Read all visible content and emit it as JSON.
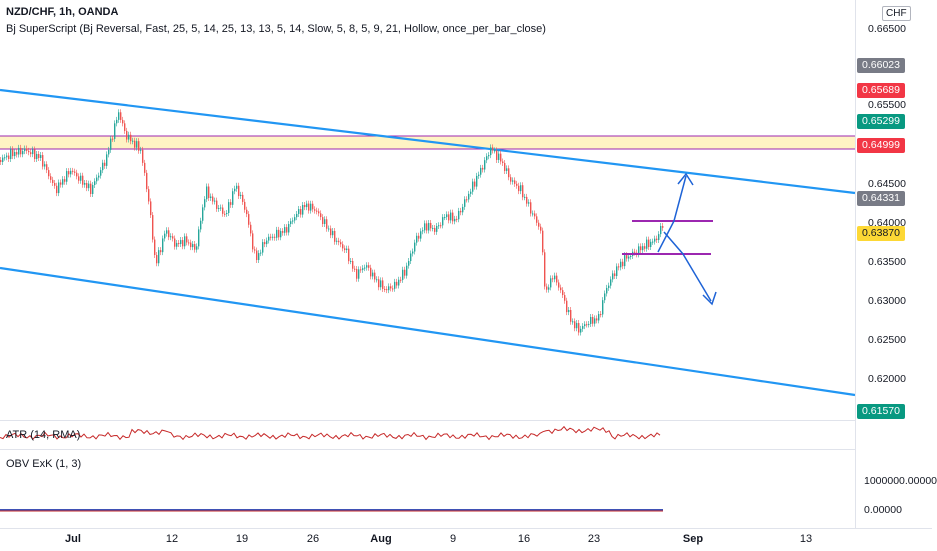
{
  "header": {
    "symbol_line": "NZD/CHF, 1h, OANDA",
    "indicator_line": "Bj SuperScript (Bj Reversal, Fast, 25, 5, 14, 25, 13, 13, 5, 14, Slow, 5, 8, 5, 9, 21, Hollow, once_per_bar_close)"
  },
  "price_axis": {
    "currency": "CHF",
    "ticks": [
      "0.66500",
      "0.65500",
      "0.64500",
      "0.64000",
      "0.63500",
      "0.63000",
      "0.62500",
      "0.62000"
    ],
    "tags": [
      {
        "label": "0.66023",
        "color": "#787b86"
      },
      {
        "label": "0.65689",
        "color": "#f23645"
      },
      {
        "label": "0.65299",
        "color": "#089981"
      },
      {
        "label": "0.64999",
        "color": "#f23645"
      },
      {
        "label": "0.64331",
        "color": "#787b86"
      },
      {
        "label": "0.63870",
        "color": "#fdd835"
      },
      {
        "label": "0.61570",
        "color": "#089981"
      }
    ]
  },
  "atr_pane": {
    "label": "ATR (14, RMA)"
  },
  "obv_pane": {
    "label": "OBV ExK (1, 3)",
    "ticks": [
      "1000000.00000",
      "0.00000"
    ]
  },
  "time_axis": {
    "labels": [
      "Jul",
      "12",
      "19",
      "26",
      "Aug",
      "9",
      "16",
      "23",
      "Sep",
      "13"
    ]
  },
  "colors": {
    "channel": "#2196f3",
    "up_candle": "#26a69a",
    "down_candle": "#ef5350",
    "zone_fill": "#fff3c4",
    "zone_border": "#9c27b0",
    "level_line": "#9c27b0",
    "arrow": "#1e63d6",
    "atr_line": "#c62828",
    "obv_line": "#3f51b5"
  }
}
